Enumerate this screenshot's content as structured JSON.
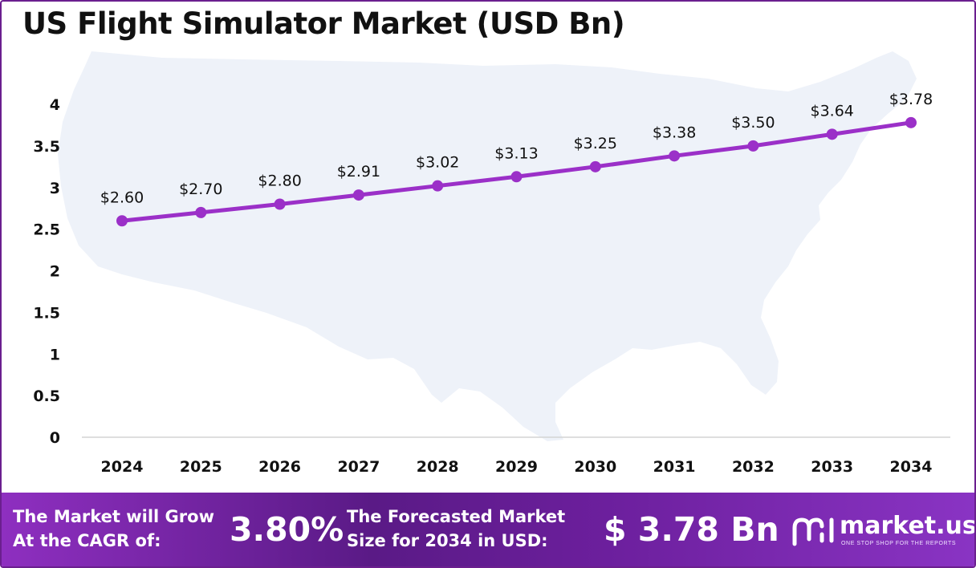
{
  "title": "US Flight Simulator Market (USD Bn)",
  "colors": {
    "line": "#9b30c8",
    "marker": "#9b30c8",
    "map_fill": "#eef2f9",
    "footer_dark": "#5a1a86",
    "footer_light": "#8e2fc0",
    "frame": "#6b1f8f"
  },
  "chart_data": {
    "type": "line",
    "title": "US Flight Simulator Market (USD Bn)",
    "xlabel": "",
    "ylabel": "",
    "categories": [
      "2024",
      "2025",
      "2026",
      "2027",
      "2028",
      "2029",
      "2030",
      "2031",
      "2032",
      "2033",
      "2034"
    ],
    "series": [
      {
        "values": [
          2.6,
          2.7,
          2.8,
          2.91,
          3.02,
          3.13,
          3.25,
          3.38,
          3.5,
          3.64,
          3.78
        ]
      }
    ],
    "data_labels": [
      "$2.60",
      "$2.70",
      "$2.80",
      "$2.91",
      "$3.02",
      "$3.13",
      "$3.25",
      "$3.38",
      "$3.50",
      "$3.64",
      "$3.78"
    ],
    "y_ticks": [
      "0",
      "0.5",
      "1",
      "1.5",
      "2",
      "2.5",
      "3",
      "3.5",
      "4"
    ],
    "ylim": [
      0,
      4
    ],
    "grid": false,
    "legend": "none",
    "background": "us-map-silhouette"
  },
  "footer": {
    "cagr_text_line1": "The Market will Grow",
    "cagr_text_line2": "At the CAGR of:",
    "cagr_value": "3.80%",
    "forecast_text_line1": "The Forecasted Market",
    "forecast_text_line2": "Size for 2034 in USD:",
    "forecast_value": "$ 3.78 Bn",
    "logo_text": "market.us",
    "logo_tagline": "ONE STOP SHOP FOR THE REPORTS",
    "logo_icon": "market-us-logo-icon"
  }
}
